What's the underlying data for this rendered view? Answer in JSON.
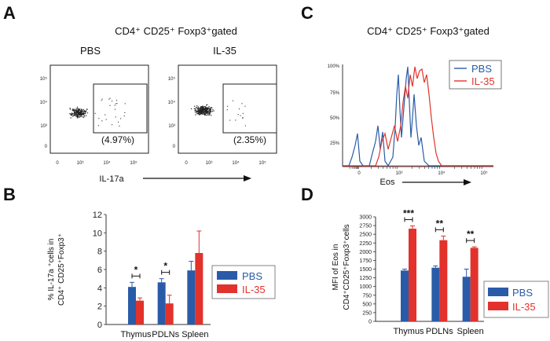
{
  "panels": {
    "a": {
      "letter": "A",
      "title": "CD4⁺ CD25⁺ Foxp3⁺gated",
      "plots": [
        {
          "name": "PBS",
          "percent": "(4.97%)"
        },
        {
          "name": "IL-35",
          "percent": "(2.35%)"
        }
      ],
      "y_ticks": [
        "10⁵",
        "10⁴",
        "10³",
        "0"
      ],
      "x_ticks": [
        "0",
        "10³",
        "10⁴",
        "10⁵"
      ],
      "x_label": "IL-17a"
    },
    "b": {
      "letter": "B",
      "y_label_line1": "% IL-17a ⁺cells in",
      "y_label_line2": "CD4⁺ CD25⁺Foxp3⁺",
      "legend": [
        "PBS",
        "IL-35"
      ]
    },
    "c": {
      "letter": "C",
      "title": "CD4⁺ CD25⁺ Foxp3⁺gated",
      "legend": [
        "PBS",
        "IL-35"
      ],
      "y_ticks": [
        "100%",
        "75%",
        "50%",
        "25%"
      ],
      "x_ticks": [
        "0",
        "10³",
        "10⁴",
        "10⁵"
      ],
      "x_label": "Eos"
    },
    "d": {
      "letter": "D",
      "y_label_line1": "MFI of Eos in",
      "y_label_line2": "CD4⁺CD25⁺Foxp3⁺cells",
      "legend": [
        "PBS",
        "IL-35"
      ]
    }
  },
  "colors": {
    "pbs": "#2a5ba8",
    "il35": "#e2322b",
    "axis": "#333333"
  },
  "chart_data": [
    {
      "id": "panel-B",
      "type": "bar",
      "categories": [
        "Thymus",
        "PDLNs",
        "Spleen"
      ],
      "series": [
        {
          "name": "PBS",
          "values": [
            4.1,
            4.6,
            5.9
          ],
          "errors": [
            0.5,
            0.4,
            1.0
          ]
        },
        {
          "name": "IL-35",
          "values": [
            2.6,
            2.3,
            7.8
          ],
          "errors": [
            0.3,
            0.9,
            2.4
          ]
        }
      ],
      "ylim": [
        0,
        12
      ],
      "yticks": [
        0,
        2,
        4,
        6,
        8,
        10,
        12
      ],
      "ylabel": "% IL-17a ⁺cells in CD4⁺ CD25⁺Foxp3⁺",
      "significance": [
        {
          "category": "Thymus",
          "label": "*"
        },
        {
          "category": "PDLNs",
          "label": "*"
        }
      ]
    },
    {
      "id": "panel-D",
      "type": "bar",
      "categories": [
        "Thymus",
        "PDLNs",
        "Spleen"
      ],
      "series": [
        {
          "name": "PBS",
          "values": [
            1460,
            1540,
            1280
          ],
          "errors": [
            40,
            50,
            220
          ]
        },
        {
          "name": "IL-35",
          "values": [
            2660,
            2330,
            2110
          ],
          "errors": [
            80,
            120,
            30
          ]
        }
      ],
      "ylim": [
        0,
        3000
      ],
      "yticks": [
        0,
        250,
        500,
        750,
        1000,
        1250,
        1500,
        1750,
        2000,
        2250,
        2500,
        2750,
        3000
      ],
      "ylabel": "MFI of Eos in CD4⁺CD25⁺Foxp3⁺cells",
      "significance": [
        {
          "category": "Thymus",
          "label": "***"
        },
        {
          "category": "PDLNs",
          "label": "**"
        },
        {
          "category": "Spleen",
          "label": "**"
        }
      ]
    }
  ]
}
